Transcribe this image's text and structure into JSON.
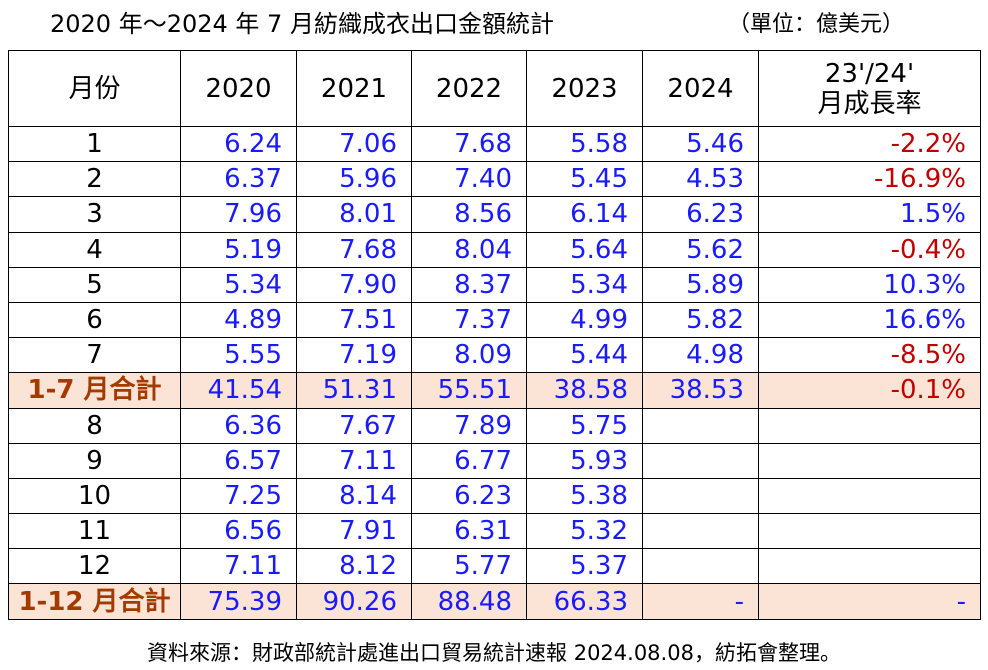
{
  "header": {
    "title": "2020 年～2024 年 7 月紡織成衣出口金額統計",
    "unit": "（單位：億美元）"
  },
  "table": {
    "columns": [
      "月份",
      "2020",
      "2021",
      "2022",
      "2023",
      "2024",
      "23'/24'\n月成長率"
    ],
    "rows": [
      [
        "1",
        "6.24",
        "7.06",
        "7.68",
        "5.58",
        "5.46",
        "-2.2%"
      ],
      [
        "2",
        "6.37",
        "5.96",
        "7.40",
        "5.45",
        "4.53",
        "-16.9%"
      ],
      [
        "3",
        "7.96",
        "8.01",
        "8.56",
        "6.14",
        "6.23",
        "1.5%"
      ],
      [
        "4",
        "5.19",
        "7.68",
        "8.04",
        "5.64",
        "5.62",
        "-0.4%"
      ],
      [
        "5",
        "5.34",
        "7.90",
        "8.37",
        "5.34",
        "5.89",
        "10.3%"
      ],
      [
        "6",
        "4.89",
        "7.51",
        "7.37",
        "4.99",
        "5.82",
        "16.6%"
      ],
      [
        "7",
        "5.55",
        "7.19",
        "8.09",
        "5.44",
        "4.98",
        "-8.5%"
      ],
      [
        "1-7 月合計",
        "41.54",
        "51.31",
        "55.51",
        "38.58",
        "38.53",
        "-0.1%"
      ],
      [
        "8",
        "6.36",
        "7.67",
        "7.89",
        "5.75",
        null,
        null
      ],
      [
        "9",
        "6.57",
        "7.11",
        "6.77",
        "5.93",
        null,
        null
      ],
      [
        "10",
        "7.25",
        "8.14",
        "6.23",
        "5.38",
        null,
        null
      ],
      [
        "11",
        "6.56",
        "7.91",
        "6.31",
        "5.32",
        null,
        null
      ],
      [
        "12",
        "7.11",
        "8.12",
        "5.77",
        "5.37",
        null,
        null
      ],
      [
        "1-12 月合計",
        "75.39",
        "90.26",
        "88.48",
        "66.33",
        "-",
        "-"
      ]
    ],
    "subtotal_rows": [
      7,
      13
    ]
  },
  "footer": {
    "source": "資料來源：財政部統計處進出口貿易統計速報 2024.08.08，紡拓會整理。"
  }
}
